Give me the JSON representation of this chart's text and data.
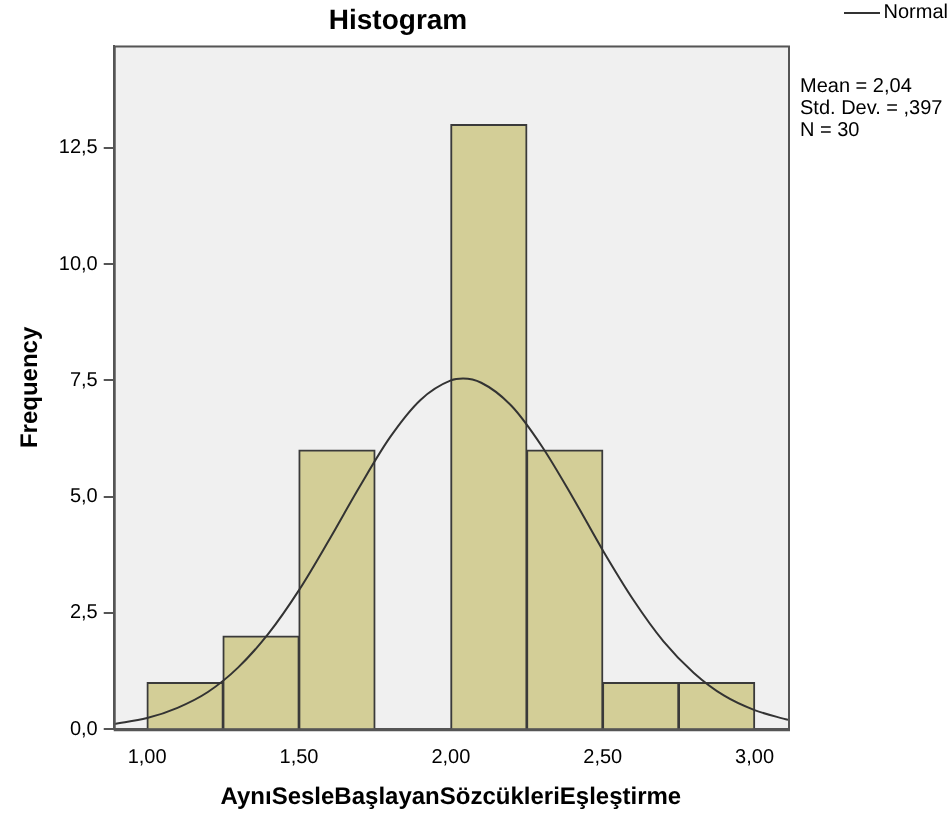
{
  "chart_data": {
    "type": "histogram",
    "title": "Histogram",
    "xlabel": "AynıSesleBaşlayanSözcükleriEşleştirme",
    "ylabel": "Frequency",
    "bins": [
      1.0,
      1.25,
      1.5,
      1.75,
      2.0,
      2.25,
      2.5,
      2.75,
      3.0
    ],
    "values": [
      1,
      2,
      6,
      0,
      13,
      6,
      1,
      1
    ],
    "color": "#d3ce97",
    "series": [
      {
        "name": "Normal",
        "type": "line",
        "color": "#333333",
        "x": [
          0.89,
          1.0,
          1.1,
          1.2,
          1.3,
          1.4,
          1.5,
          1.6,
          1.7,
          1.8,
          1.9,
          2.0,
          2.04,
          2.1,
          2.2,
          2.3,
          2.4,
          2.5,
          2.6,
          2.7,
          2.8,
          2.9,
          3.0,
          3.11
        ],
        "values": [
          0.11,
          0.24,
          0.46,
          0.8,
          1.33,
          2.06,
          2.99,
          4.08,
          5.22,
          6.28,
          7.08,
          7.5,
          7.54,
          7.45,
          6.95,
          6.08,
          5.0,
          3.85,
          2.79,
          1.89,
          1.21,
          0.72,
          0.41,
          0.2
        ]
      }
    ],
    "xlim": [
      0.89,
      3.11
    ],
    "ylim": [
      0,
      14.7
    ],
    "xticks": [
      {
        "value": 1.0,
        "label": "1,00"
      },
      {
        "value": 1.5,
        "label": "1,50"
      },
      {
        "value": 2.0,
        "label": "2,00"
      },
      {
        "value": 2.5,
        "label": "2,50"
      },
      {
        "value": 3.0,
        "label": "3,00"
      }
    ],
    "yticks": [
      {
        "value": 0,
        "label": "0,0"
      },
      {
        "value": 2.5,
        "label": "2,5"
      },
      {
        "value": 5,
        "label": "5,0"
      },
      {
        "value": 7.5,
        "label": "7,5"
      },
      {
        "value": 10,
        "label": "10,0"
      },
      {
        "value": 12.5,
        "label": "12,5"
      }
    ],
    "legend": "top right",
    "marker": "none",
    "annotations": [
      "Mean = 2,04",
      "Std. Dev. = ,397",
      "N = 30"
    ]
  }
}
